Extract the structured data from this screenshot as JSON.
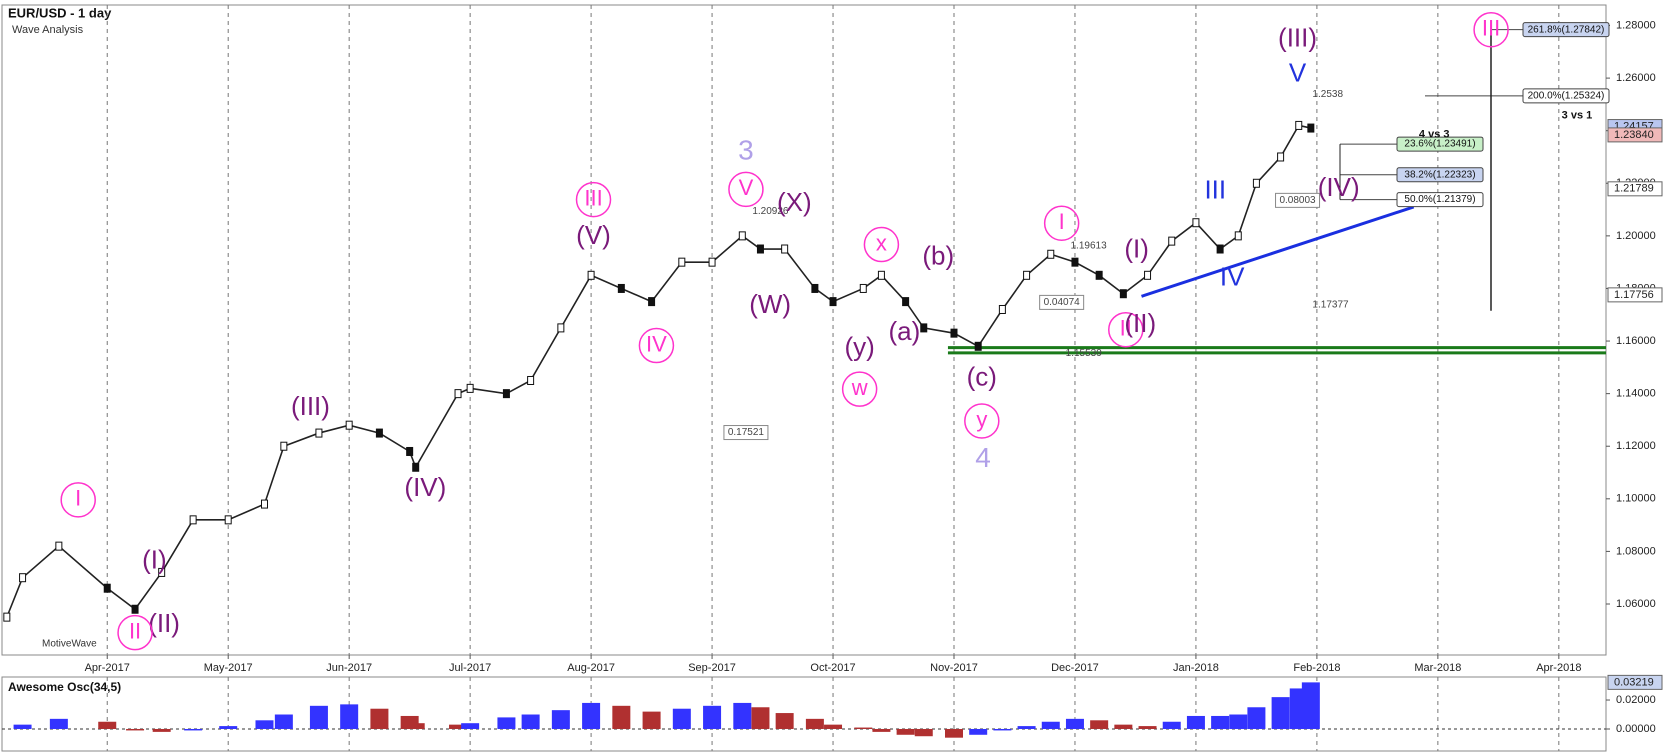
{
  "chart_data": [
    {
      "type": "line",
      "title": "EUR/USD - 1 day",
      "subtitle": "Wave Analysis",
      "watermark": "MotiveWave",
      "color": "#222222",
      "x": [
        -0.83,
        -0.7,
        -0.4,
        0,
        0.23,
        0.45,
        0.71,
        1.0,
        1.3,
        1.46,
        1.75,
        2.0,
        2.25,
        2.5,
        2.55,
        2.9,
        3.0,
        3.3,
        3.5,
        3.75,
        4.0,
        4.25,
        4.5,
        4.75,
        5.0,
        5.25,
        5.4,
        5.6,
        5.85,
        6.0,
        6.25,
        6.4,
        6.6,
        6.75,
        7.0,
        7.2,
        7.4,
        7.6,
        7.8,
        8.0,
        8.2,
        8.4,
        8.6,
        8.8,
        9.0,
        9.2,
        9.35,
        9.5,
        9.7,
        9.85,
        9.95
      ],
      "values": [
        1.055,
        1.07,
        1.082,
        1.066,
        1.058,
        1.072,
        1.092,
        1.092,
        1.098,
        1.12,
        1.125,
        1.128,
        1.125,
        1.118,
        1.112,
        1.14,
        1.142,
        1.14,
        1.145,
        1.165,
        1.185,
        1.18,
        1.175,
        1.19,
        1.19,
        1.2,
        1.195,
        1.195,
        1.18,
        1.175,
        1.18,
        1.185,
        1.175,
        1.165,
        1.163,
        1.158,
        1.172,
        1.185,
        1.193,
        1.19,
        1.185,
        1.178,
        1.185,
        1.198,
        1.205,
        1.195,
        1.2,
        1.22,
        1.23,
        1.242,
        1.241
      ],
      "xlim": [
        -0.87,
        12.39
      ],
      "xticks": [
        {
          "value": 0,
          "label": "Apr-2017"
        },
        {
          "value": 1,
          "label": "May-2017"
        },
        {
          "value": 2,
          "label": "Jun-2017"
        },
        {
          "value": 3,
          "label": "Jul-2017"
        },
        {
          "value": 4,
          "label": "Aug-2017"
        },
        {
          "value": 5,
          "label": "Sep-2017"
        },
        {
          "value": 6,
          "label": "Oct-2017"
        },
        {
          "value": 7,
          "label": "Nov-2017"
        },
        {
          "value": 8,
          "label": "Dec-2017"
        },
        {
          "value": 9,
          "label": "Jan-2018"
        },
        {
          "value": 10,
          "label": "Feb-2018"
        },
        {
          "value": 11,
          "label": "Mar-2018"
        },
        {
          "value": 12,
          "label": "Apr-2018"
        }
      ],
      "ylim": [
        1.0406,
        1.2878
      ],
      "yticks": [
        {
          "value": 1.06,
          "label": "1.06000"
        },
        {
          "value": 1.08,
          "label": "1.08000"
        },
        {
          "value": 1.1,
          "label": "1.10000"
        },
        {
          "value": 1.12,
          "label": "1.12000"
        },
        {
          "value": 1.14,
          "label": "1.14000"
        },
        {
          "value": 1.16,
          "label": "1.16000"
        },
        {
          "value": 1.18,
          "label": "1.18000"
        },
        {
          "value": 1.2,
          "label": "1.20000"
        },
        {
          "value": 1.22,
          "label": "1.22000"
        },
        {
          "value": 1.24,
          "label": "1.24000"
        },
        {
          "value": 1.26,
          "label": "1.26000"
        },
        {
          "value": 1.28,
          "label": "1.28000"
        }
      ],
      "axis_markers": [
        {
          "value": 1.24157,
          "color": "#b9c6f0"
        },
        {
          "value": 1.2384,
          "label": "1.23840",
          "color": "#f0b9b9"
        },
        {
          "value": 1.21789,
          "color": "#ffffff"
        },
        {
          "value": 1.17756,
          "color": "#ffffff"
        }
      ],
      "fib_levels": [
        {
          "label": "261.8%(1.27842)",
          "value": 1.27842,
          "color": "#c8d4f0"
        },
        {
          "label": "200.0%(1.25324)",
          "value": 1.25324,
          "color": "#ffffff"
        },
        {
          "label": "23.6%(1.23491)",
          "value": 1.23491,
          "color": "#c8f0c8"
        },
        {
          "label": "38.2%(1.22323)",
          "value": 1.22323,
          "color": "#c8d4f0"
        },
        {
          "label": "50.0%(1.21379)",
          "value": 1.21379,
          "color": "#ffffff"
        }
      ],
      "measurements": [
        {
          "value": 0.17521,
          "x": 5.28,
          "y": 1.1252
        },
        {
          "value": 0.08003,
          "x": 9.84,
          "y": 1.2135
        },
        {
          "value": 0.04074,
          "x": 7.89,
          "y": 1.1747
        }
      ],
      "price_notes": [
        {
          "value": 1.2538,
          "x": 9.93
        },
        {
          "value": 1.17377,
          "x": 9.93
        },
        {
          "value": 1.15539,
          "x": 7.89
        },
        {
          "value": 1.19613,
          "x": 7.93
        },
        {
          "value": 1.20926,
          "x": 5.3
        }
      ],
      "support_lines": [
        1.1575,
        1.1555
      ],
      "support_color": "#1a7a1a",
      "trendline": {
        "x": [
          8.55,
          10.8
        ],
        "y": [
          1.177,
          1.211
        ],
        "color": "#1a2fe0"
      },
      "annotations": [
        {
          "text": "I",
          "x": -0.24,
          "y": 1.0996,
          "style": "circle-pink"
        },
        {
          "text": "(I)",
          "x": 0.39,
          "y": 1.0762,
          "style": "purple"
        },
        {
          "text": "(II)",
          "x": 0.47,
          "y": 1.0519,
          "style": "purple"
        },
        {
          "text": "II",
          "x": 0.23,
          "y": 1.0491,
          "style": "circle-pink"
        },
        {
          "text": "(III)",
          "x": 1.68,
          "y": 1.1344,
          "style": "purple"
        },
        {
          "text": "(IV)",
          "x": 2.63,
          "y": 1.1037,
          "style": "purple"
        },
        {
          "text": "(V)",
          "x": 4.02,
          "y": 1.1995,
          "style": "purple"
        },
        {
          "text": "III",
          "x": 4.02,
          "y": 1.2138,
          "style": "circle-pink"
        },
        {
          "text": "IV",
          "x": 4.54,
          "y": 1.1583,
          "style": "circle-pink"
        },
        {
          "text": "3",
          "x": 5.28,
          "y": 1.2319,
          "style": "lavender"
        },
        {
          "text": "V",
          "x": 5.28,
          "y": 1.2177,
          "style": "circle-pink"
        },
        {
          "text": "(X)",
          "x": 5.68,
          "y": 1.2121,
          "style": "purple"
        },
        {
          "text": "(W)",
          "x": 5.48,
          "y": 1.1732,
          "style": "purple"
        },
        {
          "text": "x",
          "x": 6.4,
          "y": 1.1967,
          "style": "circle-pink"
        },
        {
          "text": "(y)",
          "x": 6.22,
          "y": 1.1571,
          "style": "purple"
        },
        {
          "text": "w",
          "x": 6.22,
          "y": 1.1417,
          "style": "circle-pink"
        },
        {
          "text": "(b)",
          "x": 6.87,
          "y": 1.1918,
          "style": "purple"
        },
        {
          "text": "(a)",
          "x": 6.59,
          "y": 1.1631,
          "style": "purple"
        },
        {
          "text": "(c)",
          "x": 7.23,
          "y": 1.1457,
          "style": "purple"
        },
        {
          "text": "y",
          "x": 7.23,
          "y": 1.1296,
          "style": "circle-pink"
        },
        {
          "text": "4",
          "x": 7.24,
          "y": 1.115,
          "style": "lavender"
        },
        {
          "text": "I",
          "x": 7.89,
          "y": 1.2048,
          "style": "circle-pink"
        },
        {
          "text": "(I)",
          "x": 8.51,
          "y": 1.1943,
          "style": "purple"
        },
        {
          "text": "II",
          "x": 8.42,
          "y": 1.1643,
          "style": "circle-pink"
        },
        {
          "text": "(II)",
          "x": 8.54,
          "y": 1.166,
          "style": "purple"
        },
        {
          "text": "III",
          "x": 9.16,
          "y": 1.2169,
          "style": "blue"
        },
        {
          "text": "IV",
          "x": 9.3,
          "y": 1.1837,
          "style": "blue"
        },
        {
          "text": "V",
          "x": 9.84,
          "y": 1.2614,
          "style": "blue"
        },
        {
          "text": "(III)",
          "x": 9.84,
          "y": 1.2747,
          "style": "purple"
        },
        {
          "text": "(IV)",
          "x": 10.18,
          "y": 1.2177,
          "style": "purple"
        },
        {
          "text": "III",
          "x": 11.44,
          "y": 1.2784,
          "style": "circle-pink"
        },
        {
          "text": "4 vs 3",
          "x": 10.97,
          "y": 1.2386,
          "style": "black"
        },
        {
          "text": "3 vs 1",
          "x": 12.15,
          "y": 1.2458,
          "style": "black"
        }
      ]
    },
    {
      "type": "bar",
      "title": "Awesome Osc(34,5)",
      "colors": [
        "#3333ff",
        "#b03030"
      ],
      "x": [
        -0.83,
        -0.7,
        -0.4,
        0,
        0.23,
        0.45,
        0.71,
        1.0,
        1.3,
        1.46,
        1.75,
        2.0,
        2.25,
        2.5,
        2.55,
        2.9,
        3.0,
        3.3,
        3.5,
        3.75,
        4.0,
        4.25,
        4.5,
        4.75,
        5.0,
        5.25,
        5.4,
        5.6,
        5.85,
        6.0,
        6.25,
        6.4,
        6.6,
        6.75,
        7.0,
        7.2,
        7.4,
        7.6,
        7.8,
        8.0,
        8.2,
        8.4,
        8.6,
        8.8,
        9.0,
        9.2,
        9.35,
        9.5,
        9.7,
        9.85,
        9.95
      ],
      "values": [
        0.0,
        0.003,
        0.007,
        0.005,
        -0.001,
        -0.002,
        -0.001,
        0.002,
        0.006,
        0.01,
        0.016,
        0.017,
        0.014,
        0.009,
        0.004,
        0.003,
        0.004,
        0.008,
        0.01,
        0.013,
        0.018,
        0.016,
        0.012,
        0.014,
        0.016,
        0.018,
        0.015,
        0.011,
        0.007,
        0.003,
        0.001,
        -0.002,
        -0.004,
        -0.005,
        -0.006,
        -0.004,
        -0.001,
        0.002,
        0.005,
        0.007,
        0.006,
        0.003,
        0.002,
        0.005,
        0.009,
        0.009,
        0.01,
        0.015,
        0.022,
        0.028,
        0.03219
      ],
      "xlim": [
        -0.87,
        12.39
      ],
      "ylim": [
        -0.0152,
        0.0359
      ],
      "yticks": [
        {
          "value": 0,
          "label": "0.00000"
        },
        {
          "value": 0.02,
          "label": "0.02000"
        }
      ],
      "last_value": 0.03219
    }
  ]
}
